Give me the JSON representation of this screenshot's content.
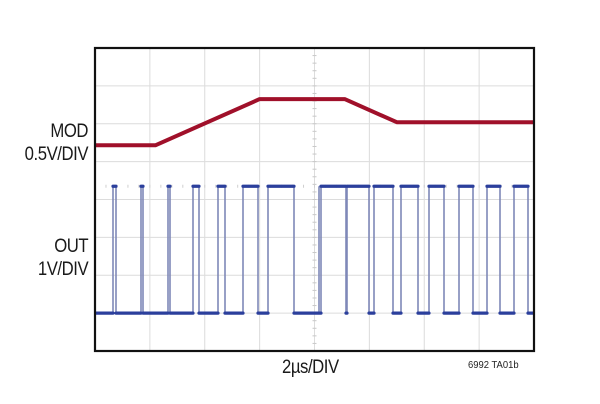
{
  "chart_data": {
    "type": "line",
    "title": "",
    "subtitle": "",
    "xlabel": "2µs/DIV",
    "ylabel": "",
    "figure_id": "6992 TA01b",
    "grid": {
      "on": true,
      "x_divisions": 8,
      "y_divisions": 8
    },
    "x_unit": "µs",
    "x_per_div": 2,
    "xlim": [
      0,
      16
    ],
    "legend_position": "left (channel labels)",
    "series": [
      {
        "name": "MOD",
        "scale": "0.5V/DIV",
        "color": "#a0102a",
        "description": "Modulation input: low level, linear ramp up, flat high, linear ramp down to intermediate level",
        "x_div": [
          0,
          1.1,
          3.0,
          4.55,
          5.5,
          8.0
        ],
        "y_div_from_bottom": [
          5.43,
          5.43,
          6.65,
          6.65,
          6.04,
          6.04
        ]
      },
      {
        "name": "OUT",
        "scale": "1V/DIV",
        "color": "#2b3f9c",
        "description": "Square-wave output; duty cycle increases as MOD rises, then partially decreases as MOD falls",
        "high_div_from_bottom": 4.35,
        "low_div_from_bottom": 1.0,
        "pulses_x_div": [
          [
            0.33,
            0.38
          ],
          [
            0.84,
            0.87
          ],
          [
            1.33,
            1.36
          ],
          [
            1.78,
            1.88
          ],
          [
            2.24,
            2.36
          ],
          [
            2.7,
            2.89
          ],
          [
            3.15,
            3.62
          ],
          [
            4.11,
            4.08
          ],
          [
            4.58,
            4.61
          ],
          [
            5.07,
            5.08
          ],
          [
            5.56,
            5.53
          ],
          [
            6.06,
            5.99
          ],
          [
            6.57,
            6.45
          ],
          [
            7.08,
            7.02
          ],
          [
            7.57,
            7.51
          ],
          [
            8.0,
            8.0
          ]
        ]
      }
    ]
  },
  "channels": {
    "mod": {
      "name": "MOD",
      "scale": "0.5V/DIV"
    },
    "out": {
      "name": "OUT",
      "scale": "1V/DIV"
    }
  },
  "timebase": {
    "label": "2µs/DIV"
  },
  "figure_id": "6992 TA01b",
  "colors": {
    "mod_trace": "#a0102a",
    "out_trace": "#2b3f9c",
    "out_edge": "#7f88b8",
    "grid": "#dcdcdc",
    "frame": "#111111"
  }
}
